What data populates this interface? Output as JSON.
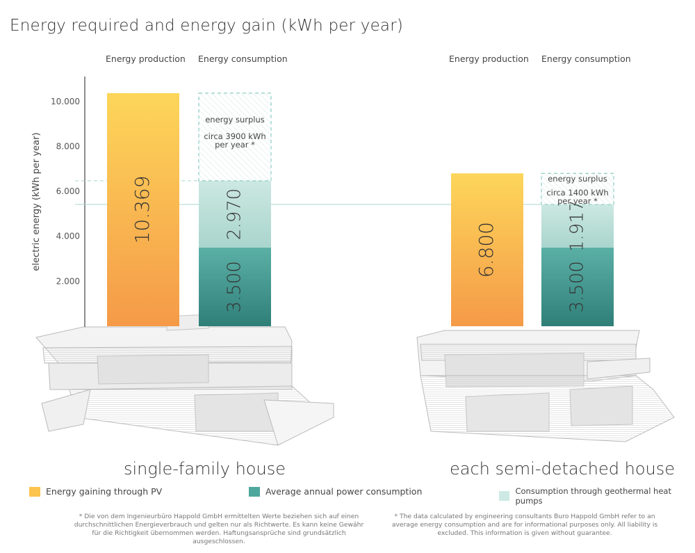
{
  "chart_data": {
    "type": "bar",
    "title": "Energy required and energy gain (kWh per year)",
    "ylabel": "electric energy (kWh per year)",
    "ylim": [
      0,
      10500
    ],
    "yticks": [
      2000,
      4000,
      6000,
      8000,
      10000
    ],
    "ytick_labels": [
      "2.000",
      "4.000",
      "6.000",
      "8.000",
      "10.000"
    ],
    "column_headers": [
      "Energy production",
      "Energy consumption"
    ],
    "groups": [
      {
        "label": "single-family house",
        "production": {
          "value": 10369,
          "label": "10.369"
        },
        "consumption": [
          {
            "series": "Average annual power consumption",
            "value": 3500,
            "label": "3.500"
          },
          {
            "series": "Consumption through geothermal heat pumps",
            "value": 2970,
            "label": "2.970"
          }
        ],
        "surplus": {
          "title": "energy surplus",
          "text_line1": "circa 3900 kWh",
          "text_line2": "per year *"
        }
      },
      {
        "label": "each semi-detached house",
        "production": {
          "value": 6800,
          "label": "6.800"
        },
        "consumption": [
          {
            "series": "Average annual power consumption",
            "value": 3500,
            "label": "3.500"
          },
          {
            "series": "Consumption through geothermal heat pumps",
            "value": 1917,
            "label": "1.917"
          }
        ],
        "surplus": {
          "title": "energy surplus",
          "text_line1": "circa 1400 kWh",
          "text_line2": "per year *"
        }
      }
    ],
    "legend": [
      {
        "name": "Energy gaining through PV",
        "color": "#fdc34f"
      },
      {
        "name": "Average annual power consumption",
        "color": "#4ea79d"
      },
      {
        "name": "Consumption through geothermal heat pumps",
        "color": "#cde9e4"
      }
    ]
  },
  "footnotes": {
    "german": "* Die von dem Ingenieurbüro Happold GmbH ermittelten Werte beziehen sich auf einen durchschnittlichen Energieverbrauch und gelten nur als Richtwerte. Es kann keine Gewähr für die Richtigkeit übernommen werden. Haftungsansprüche sind grundsätzlich ausgeschlossen.",
    "english": "* The data calculated by engineering consultants Buro Happold GmbH refer to an average energy consumption and are for informational purposes only. All liability is excluded. This information is given without guarantee."
  },
  "colors": {
    "pv_top": "#fdd65a",
    "pv_bottom": "#f59a48",
    "consumption_top": "#5bb0a6",
    "consumption_bottom": "#2f7f78",
    "geothermal_top": "#cce8e2",
    "geothermal_bottom": "#a7d3cb",
    "surplus_border": "#8dcdc4"
  }
}
